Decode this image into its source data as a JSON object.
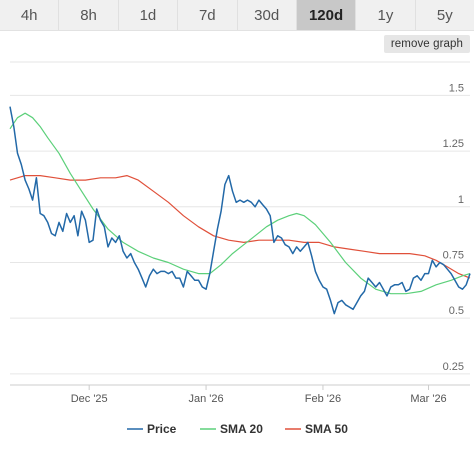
{
  "tabs": [
    "4h",
    "8h",
    "1d",
    "7d",
    "30d",
    "120d",
    "1y",
    "5y"
  ],
  "active_tab": "120d",
  "remove_label": "remove graph",
  "colors": {
    "price": "#2369a8",
    "sma20": "#5cd07a",
    "sma50": "#e0503a"
  },
  "chart_data": {
    "type": "line",
    "x_start": "2025-11-10",
    "x_end": "2026-03-12",
    "xticks": [
      {
        "date": "2025-12-01",
        "label": "Dec '25"
      },
      {
        "date": "2026-01-01",
        "label": "Jan '26"
      },
      {
        "date": "2026-02-01",
        "label": "Feb '26"
      },
      {
        "date": "2026-03-01",
        "label": "Mar '26"
      }
    ],
    "ylim": [
      0.2,
      1.65
    ],
    "yticks": [
      0.25,
      0.5,
      0.75,
      1,
      1.25,
      1.5
    ],
    "grid": true,
    "legend": "bottom",
    "series": [
      {
        "name": "Price",
        "points": [
          [
            "2025-11-10",
            1.45
          ],
          [
            "2025-11-11",
            1.36
          ],
          [
            "2025-11-12",
            1.24
          ],
          [
            "2025-11-13",
            1.19
          ],
          [
            "2025-11-14",
            1.12
          ],
          [
            "2025-11-15",
            1.08
          ],
          [
            "2025-11-16",
            1.03
          ],
          [
            "2025-11-17",
            1.13
          ],
          [
            "2025-11-18",
            0.97
          ],
          [
            "2025-11-19",
            0.96
          ],
          [
            "2025-11-20",
            0.93
          ],
          [
            "2025-11-21",
            0.88
          ],
          [
            "2025-11-22",
            0.87
          ],
          [
            "2025-11-23",
            0.93
          ],
          [
            "2025-11-24",
            0.89
          ],
          [
            "2025-11-25",
            0.97
          ],
          [
            "2025-11-26",
            0.93
          ],
          [
            "2025-11-27",
            0.96
          ],
          [
            "2025-11-28",
            0.87
          ],
          [
            "2025-11-29",
            0.98
          ],
          [
            "2025-11-30",
            0.94
          ],
          [
            "2025-12-01",
            0.84
          ],
          [
            "2025-12-02",
            0.85
          ],
          [
            "2025-12-03",
            0.99
          ],
          [
            "2025-12-04",
            0.94
          ],
          [
            "2025-12-05",
            0.91
          ],
          [
            "2025-12-06",
            0.82
          ],
          [
            "2025-12-07",
            0.86
          ],
          [
            "2025-12-08",
            0.84
          ],
          [
            "2025-12-09",
            0.87
          ],
          [
            "2025-12-10",
            0.8
          ],
          [
            "2025-12-11",
            0.77
          ],
          [
            "2025-12-12",
            0.79
          ],
          [
            "2025-12-13",
            0.75
          ],
          [
            "2025-12-14",
            0.72
          ],
          [
            "2025-12-15",
            0.68
          ],
          [
            "2025-12-16",
            0.64
          ],
          [
            "2025-12-17",
            0.69
          ],
          [
            "2025-12-18",
            0.72
          ],
          [
            "2025-12-19",
            0.7
          ],
          [
            "2025-12-20",
            0.71
          ],
          [
            "2025-12-21",
            0.71
          ],
          [
            "2025-12-22",
            0.7
          ],
          [
            "2025-12-23",
            0.71
          ],
          [
            "2025-12-24",
            0.68
          ],
          [
            "2025-12-25",
            0.68
          ],
          [
            "2025-12-26",
            0.64
          ],
          [
            "2025-12-27",
            0.71
          ],
          [
            "2025-12-28",
            0.69
          ],
          [
            "2025-12-29",
            0.67
          ],
          [
            "2025-12-30",
            0.67
          ],
          [
            "2025-12-31",
            0.64
          ],
          [
            "2026-01-01",
            0.63
          ],
          [
            "2026-01-02",
            0.7
          ],
          [
            "2026-01-03",
            0.8
          ],
          [
            "2026-01-04",
            0.9
          ],
          [
            "2026-01-05",
            0.98
          ],
          [
            "2026-01-06",
            1.1
          ],
          [
            "2026-01-07",
            1.14
          ],
          [
            "2026-01-08",
            1.07
          ],
          [
            "2026-01-09",
            1.02
          ],
          [
            "2026-01-10",
            1.03
          ],
          [
            "2026-01-11",
            1.02
          ],
          [
            "2026-01-12",
            1.03
          ],
          [
            "2026-01-13",
            1.02
          ],
          [
            "2026-01-14",
            1.0
          ],
          [
            "2026-01-15",
            1.03
          ],
          [
            "2026-01-16",
            1.01
          ],
          [
            "2026-01-17",
            0.99
          ],
          [
            "2026-01-18",
            0.96
          ],
          [
            "2026-01-19",
            0.84
          ],
          [
            "2026-01-20",
            0.87
          ],
          [
            "2026-01-21",
            0.86
          ],
          [
            "2026-01-22",
            0.83
          ],
          [
            "2026-01-23",
            0.82
          ],
          [
            "2026-01-24",
            0.79
          ],
          [
            "2026-01-25",
            0.82
          ],
          [
            "2026-01-26",
            0.8
          ],
          [
            "2026-01-27",
            0.82
          ],
          [
            "2026-01-28",
            0.84
          ],
          [
            "2026-01-29",
            0.78
          ],
          [
            "2026-01-30",
            0.71
          ],
          [
            "2026-01-31",
            0.67
          ],
          [
            "2026-02-01",
            0.64
          ],
          [
            "2026-02-02",
            0.63
          ],
          [
            "2026-02-03",
            0.58
          ],
          [
            "2026-02-04",
            0.52
          ],
          [
            "2026-02-05",
            0.57
          ],
          [
            "2026-02-06",
            0.58
          ],
          [
            "2026-02-07",
            0.56
          ],
          [
            "2026-02-08",
            0.55
          ],
          [
            "2026-02-09",
            0.54
          ],
          [
            "2026-02-10",
            0.57
          ],
          [
            "2026-02-11",
            0.6
          ],
          [
            "2026-02-12",
            0.62
          ],
          [
            "2026-02-13",
            0.68
          ],
          [
            "2026-02-14",
            0.66
          ],
          [
            "2026-02-15",
            0.64
          ],
          [
            "2026-02-16",
            0.66
          ],
          [
            "2026-02-17",
            0.63
          ],
          [
            "2026-02-18",
            0.6
          ],
          [
            "2026-02-19",
            0.64
          ],
          [
            "2026-02-20",
            0.65
          ],
          [
            "2026-02-21",
            0.65
          ],
          [
            "2026-02-22",
            0.66
          ],
          [
            "2026-02-23",
            0.62
          ],
          [
            "2026-02-24",
            0.63
          ],
          [
            "2026-02-25",
            0.68
          ],
          [
            "2026-02-26",
            0.69
          ],
          [
            "2026-02-27",
            0.67
          ],
          [
            "2026-02-28",
            0.7
          ],
          [
            "2026-03-01",
            0.7
          ],
          [
            "2026-03-02",
            0.76
          ],
          [
            "2026-03-03",
            0.73
          ],
          [
            "2026-03-04",
            0.75
          ],
          [
            "2026-03-05",
            0.74
          ],
          [
            "2026-03-06",
            0.72
          ],
          [
            "2026-03-07",
            0.7
          ],
          [
            "2026-03-08",
            0.67
          ],
          [
            "2026-03-09",
            0.64
          ],
          [
            "2026-03-10",
            0.63
          ],
          [
            "2026-03-11",
            0.65
          ],
          [
            "2026-03-12",
            0.7
          ]
        ]
      },
      {
        "name": "SMA 20",
        "points": [
          [
            "2025-11-10",
            1.35
          ],
          [
            "2025-11-12",
            1.4
          ],
          [
            "2025-11-14",
            1.42
          ],
          [
            "2025-11-16",
            1.4
          ],
          [
            "2025-11-18",
            1.36
          ],
          [
            "2025-11-20",
            1.31
          ],
          [
            "2025-11-23",
            1.24
          ],
          [
            "2025-11-26",
            1.15
          ],
          [
            "2025-11-29",
            1.07
          ],
          [
            "2025-12-02",
            0.99
          ],
          [
            "2025-12-06",
            0.9
          ],
          [
            "2025-12-10",
            0.84
          ],
          [
            "2025-12-14",
            0.8
          ],
          [
            "2025-12-18",
            0.77
          ],
          [
            "2025-12-22",
            0.75
          ],
          [
            "2025-12-26",
            0.72
          ],
          [
            "2025-12-30",
            0.7
          ],
          [
            "2026-01-02",
            0.7
          ],
          [
            "2026-01-05",
            0.74
          ],
          [
            "2026-01-08",
            0.79
          ],
          [
            "2026-01-11",
            0.83
          ],
          [
            "2026-01-14",
            0.87
          ],
          [
            "2026-01-17",
            0.91
          ],
          [
            "2026-01-20",
            0.94
          ],
          [
            "2026-01-23",
            0.96
          ],
          [
            "2026-01-25",
            0.97
          ],
          [
            "2026-01-27",
            0.96
          ],
          [
            "2026-01-30",
            0.92
          ],
          [
            "2026-02-03",
            0.84
          ],
          [
            "2026-02-07",
            0.75
          ],
          [
            "2026-02-11",
            0.68
          ],
          [
            "2026-02-15",
            0.63
          ],
          [
            "2026-02-19",
            0.61
          ],
          [
            "2026-02-23",
            0.61
          ],
          [
            "2026-02-27",
            0.62
          ],
          [
            "2026-03-03",
            0.65
          ],
          [
            "2026-03-07",
            0.67
          ],
          [
            "2026-03-10",
            0.69
          ],
          [
            "2026-03-12",
            0.7
          ]
        ]
      },
      {
        "name": "SMA 50",
        "points": [
          [
            "2025-11-10",
            1.12
          ],
          [
            "2025-11-14",
            1.14
          ],
          [
            "2025-11-18",
            1.14
          ],
          [
            "2025-11-22",
            1.13
          ],
          [
            "2025-11-26",
            1.12
          ],
          [
            "2025-11-30",
            1.12
          ],
          [
            "2025-12-04",
            1.13
          ],
          [
            "2025-12-08",
            1.13
          ],
          [
            "2025-12-11",
            1.14
          ],
          [
            "2025-12-14",
            1.12
          ],
          [
            "2025-12-18",
            1.07
          ],
          [
            "2025-12-22",
            1.02
          ],
          [
            "2025-12-26",
            0.96
          ],
          [
            "2025-12-30",
            0.91
          ],
          [
            "2026-01-03",
            0.87
          ],
          [
            "2026-01-07",
            0.85
          ],
          [
            "2026-01-11",
            0.84
          ],
          [
            "2026-01-15",
            0.85
          ],
          [
            "2026-01-19",
            0.85
          ],
          [
            "2026-01-23",
            0.85
          ],
          [
            "2026-01-27",
            0.84
          ],
          [
            "2026-01-31",
            0.84
          ],
          [
            "2026-02-04",
            0.82
          ],
          [
            "2026-02-08",
            0.81
          ],
          [
            "2026-02-12",
            0.8
          ],
          [
            "2026-02-16",
            0.79
          ],
          [
            "2026-02-20",
            0.79
          ],
          [
            "2026-02-24",
            0.79
          ],
          [
            "2026-02-28",
            0.78
          ],
          [
            "2026-03-03",
            0.76
          ],
          [
            "2026-03-06",
            0.73
          ],
          [
            "2026-03-09",
            0.7
          ],
          [
            "2026-03-12",
            0.68
          ]
        ]
      }
    ]
  }
}
